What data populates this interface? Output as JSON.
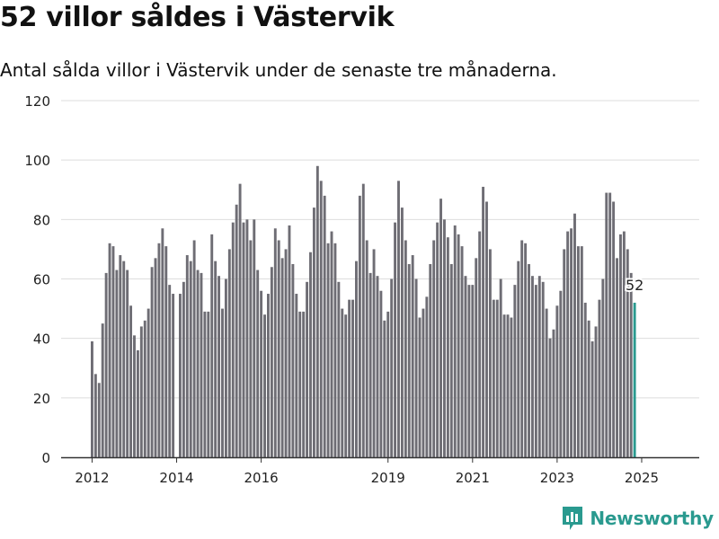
{
  "title": "52 villor såldes i Västervik",
  "subtitle": "Antal sålda villor i Västervik under de senaste tre månaderna.",
  "brand": {
    "name": "Newsworthy",
    "logo_icon": "newsworthy-chart-icon",
    "color": "#2a9a8f"
  },
  "colors": {
    "bar": "#6e6d74",
    "highlight": "#2a9a8f",
    "grid": "#dddddd",
    "axis": "#333333"
  },
  "chart_data": {
    "type": "bar",
    "x_start": "2012-01",
    "y_ticks": [
      0,
      20,
      40,
      60,
      80,
      100,
      120
    ],
    "ylim": [
      0,
      120
    ],
    "x_ticks": [
      "2012",
      "2014",
      "2016",
      "2019",
      "2021",
      "2023",
      "2025"
    ],
    "grid": true,
    "highlight_last": true,
    "last_value_label": "52",
    "values": [
      39,
      28,
      25,
      45,
      62,
      72,
      71,
      63,
      68,
      66,
      63,
      51,
      41,
      36,
      44,
      46,
      50,
      64,
      67,
      72,
      77,
      71,
      58,
      55,
      0,
      55,
      59,
      68,
      66,
      73,
      63,
      62,
      49,
      49,
      75,
      66,
      61,
      50,
      60,
      70,
      79,
      85,
      92,
      79,
      80,
      73,
      80,
      63,
      56,
      48,
      55,
      64,
      77,
      73,
      67,
      70,
      78,
      65,
      55,
      49,
      49,
      59,
      69,
      84,
      98,
      93,
      88,
      72,
      76,
      72,
      59,
      50,
      48,
      53,
      53,
      66,
      88,
      92,
      73,
      62,
      70,
      61,
      56,
      46,
      49,
      60,
      79,
      93,
      84,
      73,
      65,
      68,
      60,
      47,
      50,
      54,
      65,
      73,
      79,
      87,
      80,
      74,
      65,
      78,
      75,
      71,
      61,
      58,
      58,
      67,
      76,
      91,
      86,
      70,
      53,
      53,
      60,
      48,
      48,
      47,
      58,
      66,
      73,
      72,
      65,
      61,
      58,
      61,
      59,
      50,
      40,
      43,
      51,
      56,
      70,
      76,
      77,
      82,
      71,
      71,
      52,
      46,
      39,
      44,
      53,
      60,
      89,
      89,
      86,
      67,
      75,
      76,
      70,
      62,
      52
    ]
  }
}
